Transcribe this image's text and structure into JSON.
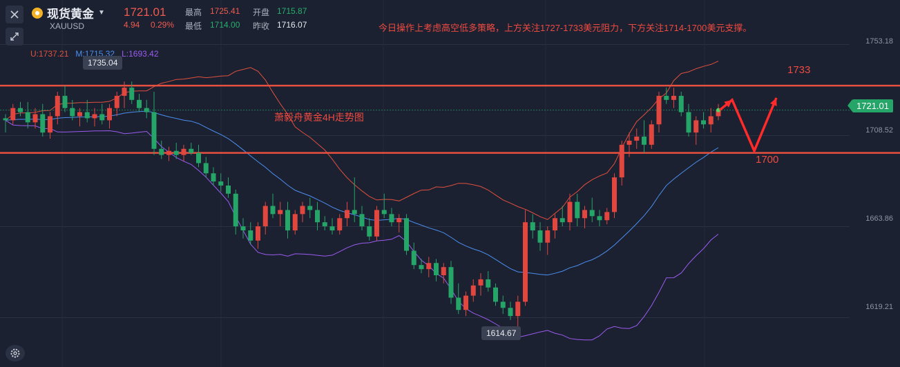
{
  "header": {
    "name": "现货黄金",
    "code": "XAUUSD",
    "price": "1721.01",
    "change": "4.94",
    "change_pct": "0.29%",
    "high_label": "最高",
    "high": "1725.41",
    "open_label": "开盘",
    "open": "1715.87",
    "low_label": "最低",
    "low": "1714.00",
    "prev_close_label": "昨收",
    "prev_close": "1716.07"
  },
  "note": "今日操作上考虑高空低多策略，上方关注1727-1733美元阻力，下方关注1714-1700美元支撑。",
  "chart_title": "萧毅舟黄金4H走势图",
  "legend": {
    "upper": "U:1737.21",
    "middle": "M:1715.32",
    "lower": "L:1693.42"
  },
  "levels": {
    "resistance_label": "1733",
    "support_label": "1700"
  },
  "callouts": {
    "high": "1735.04",
    "low": "1614.67"
  },
  "price_tag": "1721.01",
  "colors": {
    "background": "#1b2130",
    "up": "#e2473f",
    "down": "#26a569",
    "upper_band": "#e0503f",
    "middle_band": "#4b8ff0",
    "lower_band": "#9b5cf2",
    "level_line": "#e8513f"
  },
  "chart_data": {
    "type": "candlestick",
    "symbol": "XAUUSD",
    "y_ticks": [
      "1753.18",
      "1708.52",
      "1663.86",
      "1619.21"
    ],
    "ylim": [
      1595,
      1775
    ],
    "horizontal_levels": [
      1733,
      1700
    ],
    "projection": [
      1721.01,
      1726,
      1701,
      1727
    ],
    "candles": [
      [
        1717,
        1719,
        1710,
        1716
      ],
      [
        1716,
        1724,
        1714,
        1722
      ],
      [
        1722,
        1725,
        1718,
        1720
      ],
      [
        1720,
        1725,
        1712,
        1715
      ],
      [
        1715,
        1722,
        1712,
        1719
      ],
      [
        1719,
        1724,
        1708,
        1710
      ],
      [
        1710,
        1720,
        1707,
        1718
      ],
      [
        1718,
        1730,
        1714,
        1728
      ],
      [
        1728,
        1733,
        1720,
        1722
      ],
      [
        1722,
        1726,
        1716,
        1718
      ],
      [
        1718,
        1722,
        1713,
        1720
      ],
      [
        1720,
        1726,
        1715,
        1717
      ],
      [
        1717,
        1722,
        1713,
        1719
      ],
      [
        1719,
        1724,
        1714,
        1716
      ],
      [
        1716,
        1724,
        1712,
        1722
      ],
      [
        1722,
        1730,
        1718,
        1728
      ],
      [
        1728,
        1735.04,
        1722,
        1732
      ],
      [
        1732,
        1735,
        1724,
        1726
      ],
      [
        1726,
        1729,
        1720,
        1722
      ],
      [
        1722,
        1726,
        1717,
        1720
      ],
      [
        1720,
        1730,
        1699,
        1702
      ],
      [
        1702,
        1706,
        1697,
        1699
      ],
      [
        1699,
        1703,
        1696,
        1701
      ],
      [
        1701,
        1705,
        1697,
        1699
      ],
      [
        1699,
        1704,
        1696,
        1702
      ],
      [
        1702,
        1705,
        1699,
        1700
      ],
      [
        1700,
        1704,
        1693,
        1695
      ],
      [
        1695,
        1698,
        1688,
        1690
      ],
      [
        1690,
        1693,
        1684,
        1686
      ],
      [
        1686,
        1690,
        1681,
        1684
      ],
      [
        1684,
        1688,
        1678,
        1680
      ],
      [
        1680,
        1682,
        1660,
        1664
      ],
      [
        1664,
        1668,
        1658,
        1662
      ],
      [
        1662,
        1666,
        1655,
        1657
      ],
      [
        1657,
        1666,
        1653,
        1664
      ],
      [
        1664,
        1676,
        1660,
        1674
      ],
      [
        1674,
        1680,
        1668,
        1670
      ],
      [
        1670,
        1676,
        1664,
        1672
      ],
      [
        1672,
        1676,
        1658,
        1662
      ],
      [
        1662,
        1672,
        1660,
        1670
      ],
      [
        1670,
        1676,
        1666,
        1674
      ],
      [
        1674,
        1678,
        1668,
        1672
      ],
      [
        1672,
        1676,
        1662,
        1666
      ],
      [
        1666,
        1669,
        1662,
        1664
      ],
      [
        1664,
        1668,
        1660,
        1662
      ],
      [
        1662,
        1670,
        1660,
        1668
      ],
      [
        1668,
        1676,
        1664,
        1672
      ],
      [
        1672,
        1688,
        1666,
        1670
      ],
      [
        1670,
        1674,
        1662,
        1664
      ],
      [
        1664,
        1668,
        1657,
        1659
      ],
      [
        1659,
        1674,
        1657,
        1672
      ],
      [
        1672,
        1680,
        1668,
        1670
      ],
      [
        1670,
        1673,
        1664,
        1666
      ],
      [
        1666,
        1670,
        1661,
        1668
      ],
      [
        1668,
        1670,
        1650,
        1652
      ],
      [
        1652,
        1656,
        1643,
        1645
      ],
      [
        1645,
        1648,
        1641,
        1643
      ],
      [
        1643,
        1649,
        1639,
        1646
      ],
      [
        1646,
        1648,
        1637,
        1640
      ],
      [
        1640,
        1646,
        1636,
        1644
      ],
      [
        1644,
        1647,
        1626,
        1629
      ],
      [
        1629,
        1636,
        1621,
        1623
      ],
      [
        1623,
        1632,
        1620,
        1630
      ],
      [
        1630,
        1638,
        1627,
        1635
      ],
      [
        1635,
        1641,
        1630,
        1638
      ],
      [
        1638,
        1642,
        1632,
        1634
      ],
      [
        1634,
        1636,
        1625,
        1627
      ],
      [
        1627,
        1630,
        1621,
        1624
      ],
      [
        1624,
        1627,
        1618,
        1620
      ],
      [
        1620,
        1630,
        1614.67,
        1627
      ],
      [
        1627,
        1672,
        1625,
        1666
      ],
      [
        1666,
        1670,
        1658,
        1662
      ],
      [
        1662,
        1666,
        1652,
        1656
      ],
      [
        1656,
        1664,
        1650,
        1662
      ],
      [
        1662,
        1670,
        1658,
        1668
      ],
      [
        1668,
        1674,
        1664,
        1666
      ],
      [
        1666,
        1680,
        1662,
        1676
      ],
      [
        1676,
        1680,
        1664,
        1668
      ],
      [
        1668,
        1674,
        1663,
        1672
      ],
      [
        1672,
        1678,
        1666,
        1669
      ],
      [
        1669,
        1672,
        1664,
        1667
      ],
      [
        1667,
        1673,
        1665,
        1671
      ],
      [
        1671,
        1690,
        1668,
        1688
      ],
      [
        1688,
        1706,
        1684,
        1704
      ],
      [
        1704,
        1710,
        1698,
        1706
      ],
      [
        1706,
        1712,
        1702,
        1708
      ],
      [
        1708,
        1716,
        1700,
        1704
      ],
      [
        1704,
        1716,
        1702,
        1714
      ],
      [
        1714,
        1730,
        1710,
        1728
      ],
      [
        1728,
        1732,
        1724,
        1726
      ],
      [
        1726,
        1732,
        1722,
        1728
      ],
      [
        1728,
        1730,
        1718,
        1720
      ],
      [
        1720,
        1724,
        1708,
        1710
      ],
      [
        1710,
        1718,
        1704,
        1716
      ],
      [
        1716,
        1720,
        1712,
        1714
      ],
      [
        1714,
        1722,
        1710,
        1718
      ],
      [
        1718,
        1724,
        1716,
        1721.01
      ]
    ]
  }
}
